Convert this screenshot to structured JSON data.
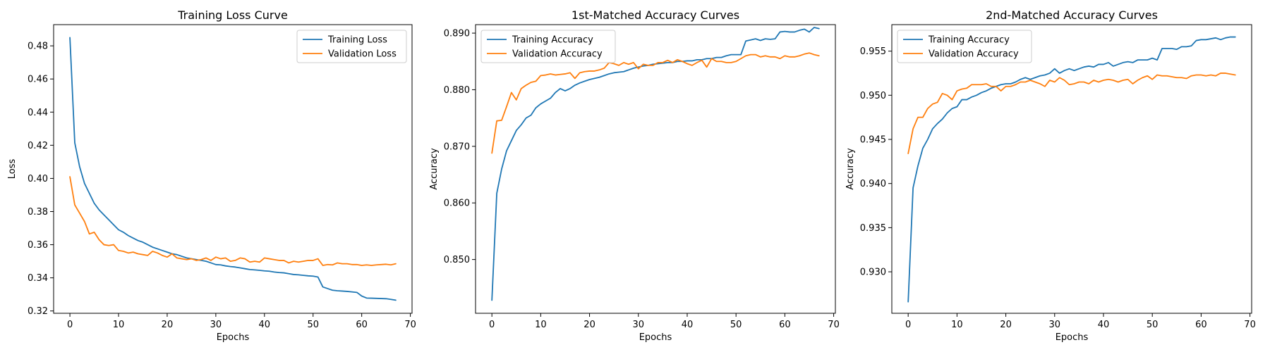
{
  "colors": {
    "training": "#1f77b4",
    "validation": "#ff7f0e",
    "frame": "#000000",
    "legend_border": "#cccccc"
  },
  "chart_data": [
    {
      "type": "line",
      "title": "Training Loss Curve",
      "xlabel": "Epochs",
      "ylabel": "Loss",
      "xlim": [
        -3.35,
        70.35
      ],
      "ylim": [
        0.3186,
        0.4928
      ],
      "xticks": [
        0,
        10,
        20,
        30,
        40,
        50,
        60,
        70
      ],
      "yticks": [
        0.32,
        0.34,
        0.36,
        0.38,
        0.4,
        0.42,
        0.44,
        0.46,
        0.48
      ],
      "tick_decimals": 2,
      "legend": "top-right",
      "grid": false,
      "series": [
        {
          "name": "Training Loss",
          "color": "#1f77b4",
          "y": [
            0.485,
            0.4215,
            0.407,
            0.397,
            0.391,
            0.385,
            0.381,
            0.378,
            0.375,
            0.372,
            0.369,
            0.3675,
            0.3655,
            0.364,
            0.3625,
            0.3615,
            0.36,
            0.3585,
            0.3575,
            0.3565,
            0.3555,
            0.3545,
            0.354,
            0.353,
            0.352,
            0.3515,
            0.351,
            0.3505,
            0.35,
            0.349,
            0.348,
            0.3478,
            0.3472,
            0.3468,
            0.3465,
            0.346,
            0.3455,
            0.345,
            0.3448,
            0.3445,
            0.3442,
            0.344,
            0.3435,
            0.3432,
            0.343,
            0.3425,
            0.342,
            0.3418,
            0.3415,
            0.3412,
            0.341,
            0.3405,
            0.3345,
            0.3335,
            0.3325,
            0.3322,
            0.332,
            0.3318,
            0.3315,
            0.3312,
            0.329,
            0.3278,
            0.3277,
            0.3276,
            0.3275,
            0.3274,
            0.327,
            0.3265
          ]
        },
        {
          "name": "Validation Loss",
          "color": "#ff7f0e",
          "y": [
            0.401,
            0.384,
            0.379,
            0.374,
            0.3665,
            0.3675,
            0.363,
            0.36,
            0.3595,
            0.36,
            0.3565,
            0.356,
            0.355,
            0.3555,
            0.3545,
            0.354,
            0.3535,
            0.356,
            0.355,
            0.3535,
            0.3525,
            0.3545,
            0.352,
            0.3515,
            0.351,
            0.3515,
            0.3505,
            0.351,
            0.352,
            0.3505,
            0.3525,
            0.3515,
            0.352,
            0.35,
            0.3505,
            0.352,
            0.3515,
            0.3495,
            0.35,
            0.3495,
            0.352,
            0.3515,
            0.351,
            0.3505,
            0.3505,
            0.349,
            0.35,
            0.3495,
            0.35,
            0.3505,
            0.3505,
            0.3515,
            0.3475,
            0.348,
            0.3478,
            0.349,
            0.3485,
            0.3485,
            0.348,
            0.348,
            0.3475,
            0.3478,
            0.3475,
            0.3478,
            0.348,
            0.3482,
            0.3478,
            0.3485
          ]
        }
      ]
    },
    {
      "type": "line",
      "title": "1st-Matched Accuracy Curves",
      "xlabel": "Epochs",
      "ylabel": "Accuracy",
      "xlim": [
        -3.35,
        70.35
      ],
      "ylim": [
        0.8405,
        0.8915
      ],
      "xticks": [
        0,
        10,
        20,
        30,
        40,
        50,
        60,
        70
      ],
      "yticks": [
        0.85,
        0.86,
        0.87,
        0.88,
        0.89
      ],
      "tick_decimals": 3,
      "legend": "top-left",
      "grid": false,
      "series": [
        {
          "name": "Training Accuracy",
          "color": "#1f77b4",
          "y": [
            0.8428,
            0.8617,
            0.866,
            0.8692,
            0.871,
            0.8728,
            0.8738,
            0.875,
            0.8755,
            0.8768,
            0.8775,
            0.878,
            0.8785,
            0.8795,
            0.8802,
            0.8798,
            0.8802,
            0.8808,
            0.8812,
            0.8815,
            0.8818,
            0.882,
            0.8822,
            0.8825,
            0.8828,
            0.883,
            0.8831,
            0.8832,
            0.8835,
            0.8838,
            0.884,
            0.8842,
            0.8843,
            0.8845,
            0.8846,
            0.8847,
            0.8848,
            0.8848,
            0.885,
            0.885,
            0.8851,
            0.8851,
            0.8853,
            0.8853,
            0.8855,
            0.8855,
            0.8857,
            0.8857,
            0.886,
            0.8862,
            0.8862,
            0.8862,
            0.8886,
            0.8888,
            0.889,
            0.8887,
            0.889,
            0.8889,
            0.889,
            0.8902,
            0.8903,
            0.8902,
            0.8902,
            0.8905,
            0.8907,
            0.8902,
            0.891,
            0.8908
          ]
        },
        {
          "name": "Validation Accuracy",
          "color": "#ff7f0e",
          "y": [
            0.8688,
            0.8745,
            0.8746,
            0.877,
            0.8795,
            0.8782,
            0.8802,
            0.8808,
            0.8813,
            0.8815,
            0.8825,
            0.8826,
            0.8828,
            0.8826,
            0.8827,
            0.8828,
            0.883,
            0.882,
            0.883,
            0.8832,
            0.8833,
            0.8833,
            0.8835,
            0.8838,
            0.8848,
            0.8846,
            0.8843,
            0.8848,
            0.8845,
            0.8848,
            0.8837,
            0.8845,
            0.8843,
            0.8843,
            0.8848,
            0.8848,
            0.8852,
            0.8848,
            0.8853,
            0.885,
            0.8846,
            0.8843,
            0.8848,
            0.8852,
            0.884,
            0.8855,
            0.885,
            0.885,
            0.8848,
            0.8848,
            0.885,
            0.8855,
            0.886,
            0.8862,
            0.8862,
            0.8858,
            0.886,
            0.8858,
            0.8858,
            0.8855,
            0.886,
            0.8858,
            0.8858,
            0.886,
            0.8863,
            0.8865,
            0.8862,
            0.886
          ]
        }
      ]
    },
    {
      "type": "line",
      "title": "2nd-Matched Accuracy Curves",
      "xlabel": "Epochs",
      "ylabel": "Accuracy",
      "xlim": [
        -3.35,
        70.35
      ],
      "ylim": [
        0.9253,
        0.958
      ],
      "xticks": [
        0,
        10,
        20,
        30,
        40,
        50,
        60,
        70
      ],
      "yticks": [
        0.93,
        0.935,
        0.94,
        0.945,
        0.95,
        0.955
      ],
      "tick_decimals": 3,
      "legend": "top-left",
      "grid": false,
      "series": [
        {
          "name": "Training Accuracy",
          "color": "#1f77b4",
          "y": [
            0.9266,
            0.9395,
            0.942,
            0.944,
            0.945,
            0.9462,
            0.9468,
            0.9473,
            0.948,
            0.9485,
            0.9487,
            0.9495,
            0.9495,
            0.9498,
            0.95,
            0.9503,
            0.9505,
            0.9508,
            0.951,
            0.9512,
            0.9513,
            0.9513,
            0.9515,
            0.9518,
            0.952,
            0.9518,
            0.952,
            0.9522,
            0.9523,
            0.9525,
            0.953,
            0.9525,
            0.9528,
            0.953,
            0.9528,
            0.953,
            0.9532,
            0.9533,
            0.9532,
            0.9535,
            0.9535,
            0.9537,
            0.9533,
            0.9535,
            0.9537,
            0.9538,
            0.9537,
            0.954,
            0.954,
            0.954,
            0.9542,
            0.954,
            0.9553,
            0.9553,
            0.9553,
            0.9552,
            0.9555,
            0.9555,
            0.9556,
            0.9562,
            0.9563,
            0.9563,
            0.9564,
            0.9565,
            0.9563,
            0.9565,
            0.9566,
            0.9566
          ]
        },
        {
          "name": "Validation Accuracy",
          "color": "#ff7f0e",
          "y": [
            0.9434,
            0.9462,
            0.9475,
            0.9475,
            0.9485,
            0.949,
            0.9492,
            0.9502,
            0.95,
            0.9495,
            0.9505,
            0.9507,
            0.9508,
            0.9512,
            0.9512,
            0.9512,
            0.9513,
            0.951,
            0.951,
            0.9505,
            0.951,
            0.951,
            0.9512,
            0.9515,
            0.9515,
            0.9517,
            0.9515,
            0.9513,
            0.951,
            0.9517,
            0.9515,
            0.952,
            0.9517,
            0.9512,
            0.9513,
            0.9515,
            0.9515,
            0.9513,
            0.9517,
            0.9515,
            0.9517,
            0.9518,
            0.9517,
            0.9515,
            0.9517,
            0.9518,
            0.9513,
            0.9517,
            0.952,
            0.9522,
            0.9518,
            0.9523,
            0.9522,
            0.9522,
            0.9521,
            0.952,
            0.952,
            0.9519,
            0.9522,
            0.9523,
            0.9523,
            0.9522,
            0.9523,
            0.9522,
            0.9525,
            0.9525,
            0.9524,
            0.9523
          ]
        }
      ]
    }
  ]
}
